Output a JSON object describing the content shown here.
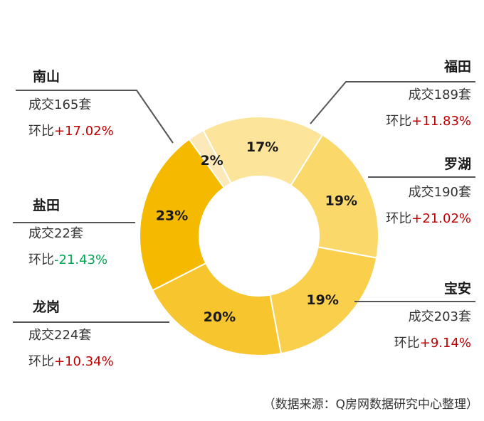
{
  "chart_data": {
    "type": "pie",
    "subtype": "donut",
    "colors": [
      "#fbd86a",
      "#f9cf4c",
      "#f7c52e",
      "#f5ba00",
      "#fce8b8",
      "#fce59a"
    ],
    "slices": [
      {
        "district": "福田",
        "pct_label": "19%",
        "deals_label": "成交189套",
        "deals": 189,
        "mom_prefix": "环比",
        "mom_value": "+11.83%",
        "mom_color": "#c00000"
      },
      {
        "district": "罗湖",
        "pct_label": "19%",
        "deals_label": "成交190套",
        "deals": 190,
        "mom_prefix": "环比",
        "mom_value": "+21.02%",
        "mom_color": "#c00000"
      },
      {
        "district": "宝安",
        "pct_label": "20%",
        "deals_label": "成交203套",
        "deals": 203,
        "mom_prefix": "环比",
        "mom_value": "+9.14%",
        "mom_color": "#c00000"
      },
      {
        "district": "龙岗",
        "pct_label": "23%",
        "deals_label": "成交224套",
        "deals": 224,
        "mom_prefix": "环比",
        "mom_value": "+10.34%",
        "mom_color": "#c00000"
      },
      {
        "district": "盐田",
        "pct_label": "2%",
        "deals_label": "成交22套",
        "deals": 22,
        "mom_prefix": "环比",
        "mom_value": "-21.43%",
        "mom_color": "#00a651"
      },
      {
        "district": "南山",
        "pct_label": "17%",
        "deals_label": "成交165套",
        "deals": 165,
        "mom_prefix": "环比",
        "mom_value": "+17.02%",
        "mom_color": "#c00000"
      }
    ],
    "source_note": "（数据来源：Q房网数据研究中心整理）"
  }
}
